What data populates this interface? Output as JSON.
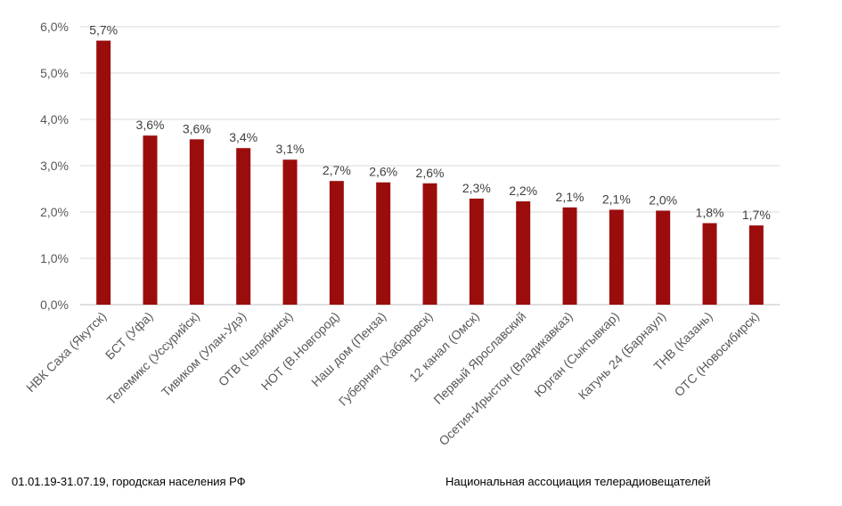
{
  "chart_data": {
    "type": "bar",
    "categories": [
      "НВК Саха (Якутск)",
      "БСТ (Уфа)",
      "Телемикс (Уссурийск)",
      "Тивиком (Улан-Удэ)",
      "ОТВ (Челябинск)",
      "НОТ (В.Новгород)",
      "Наш дом (Пенза)",
      "Губерния (Хабаровск)",
      "12 канал (Омск)",
      "Первый Ярославский",
      "Осетия-Ирыстон (Владикавказ)",
      "Юрган (Сыктывкар)",
      "Катунь 24 (Барнаул)",
      "ТНВ (Казань)",
      "ОТС (Новосибирск)"
    ],
    "values": [
      5.7,
      3.65,
      3.57,
      3.38,
      3.13,
      2.67,
      2.64,
      2.62,
      2.29,
      2.23,
      2.1,
      2.05,
      2.03,
      1.76,
      1.71
    ],
    "data_labels": [
      "5,7%",
      "3,6%",
      "3,6%",
      "3,4%",
      "3,1%",
      "2,7%",
      "2,6%",
      "2,6%",
      "2,3%",
      "2,2%",
      "2,1%",
      "2,1%",
      "2,0%",
      "1,8%",
      "1,7%"
    ],
    "y_ticks": [
      0,
      1,
      2,
      3,
      4,
      5,
      6
    ],
    "y_tick_labels": [
      "0,0%",
      "1,0%",
      "2,0%",
      "3,0%",
      "4,0%",
      "5,0%",
      "6,0%"
    ],
    "ylim": [
      0,
      6
    ],
    "grid": true,
    "legend": "none",
    "title": "",
    "xlabel": "",
    "ylabel": "",
    "bar_color": "#9b0d0d",
    "grid_color": "#d9d9d9"
  },
  "footer": {
    "left": "01.01.19-31.07.19, городская населения РФ",
    "right": "Национальная ассоциация телерадиовещателей"
  }
}
